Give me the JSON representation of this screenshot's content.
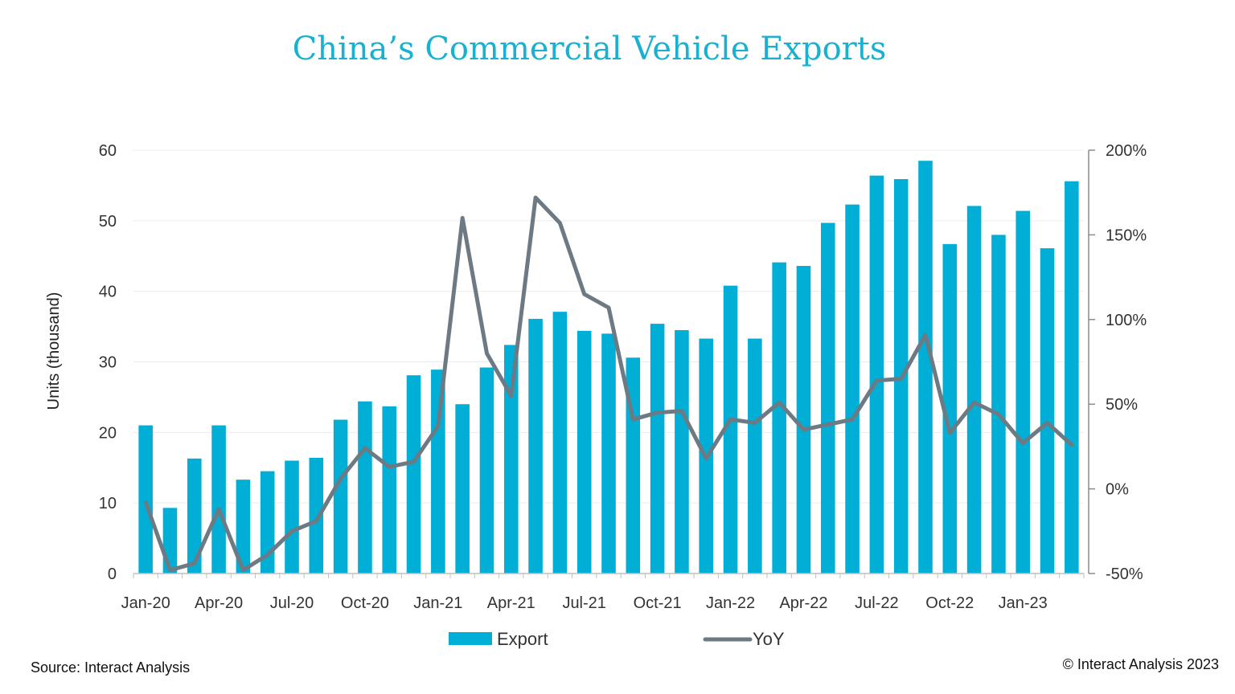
{
  "chart_data": {
    "type": "bar",
    "title": "China’s Commercial Vehicle Exports",
    "ylabel": "Units (thousand)",
    "y2label": "",
    "ylim": [
      0,
      60
    ],
    "y2lim": [
      -50,
      200
    ],
    "yticks": [
      "0",
      "10",
      "20",
      "30",
      "40",
      "50",
      "60"
    ],
    "y2ticks": [
      "-50%",
      "0%",
      "50%",
      "100%",
      "150%",
      "200%"
    ],
    "categories": [
      "Jan-20",
      "Feb-20",
      "Mar-20",
      "Apr-20",
      "May-20",
      "Jun-20",
      "Jul-20",
      "Aug-20",
      "Sep-20",
      "Oct-20",
      "Nov-20",
      "Dec-20",
      "Jan-21",
      "Feb-21",
      "Mar-21",
      "Apr-21",
      "May-21",
      "Jun-21",
      "Jul-21",
      "Aug-21",
      "Sep-21",
      "Oct-21",
      "Nov-21",
      "Dec-21",
      "Jan-22",
      "Feb-22",
      "Mar-22",
      "Apr-22",
      "May-22",
      "Jun-22",
      "Jul-22",
      "Aug-22",
      "Sep-22",
      "Oct-22",
      "Nov-22",
      "Dec-22",
      "Jan-23",
      "Feb-23",
      "Mar-23"
    ],
    "x_tick_labels": [
      "Jan-20",
      "Apr-20",
      "Jul-20",
      "Oct-20",
      "Jan-21",
      "Apr-21",
      "Jul-21",
      "Oct-21",
      "Jan-22",
      "Apr-22",
      "Jul-22",
      "Oct-22",
      "Jan-23"
    ],
    "series": [
      {
        "name": "Export",
        "type": "bar",
        "axis": "left",
        "color": "#00aed6",
        "values": [
          21.0,
          9.3,
          16.3,
          21.0,
          13.3,
          14.5,
          16.0,
          16.4,
          21.8,
          24.4,
          23.7,
          28.1,
          28.9,
          24.0,
          29.2,
          32.4,
          36.1,
          37.1,
          34.4,
          34.0,
          30.6,
          35.4,
          34.5,
          33.3,
          40.8,
          33.3,
          44.1,
          43.6,
          49.7,
          52.3,
          56.4,
          55.9,
          58.5,
          46.7,
          52.1,
          48.0,
          51.4,
          46.1,
          55.6
        ]
      },
      {
        "name": "YoY",
        "type": "line",
        "axis": "right",
        "color": "#6e7a83",
        "values": [
          -8,
          -48,
          -44,
          -12,
          -48,
          -39,
          -25,
          -19,
          6,
          24,
          13,
          16,
          37,
          160,
          80,
          55,
          172,
          157,
          115,
          107,
          41,
          45,
          46,
          18,
          41,
          39,
          51,
          35,
          38,
          41,
          64,
          65,
          91,
          33,
          51,
          44,
          27,
          39,
          26
        ]
      }
    ],
    "grid": true,
    "legend_position": "bottom"
  },
  "footer": {
    "source": "Source: Interact Analysis",
    "copyright": "© Interact Analysis 2023"
  }
}
